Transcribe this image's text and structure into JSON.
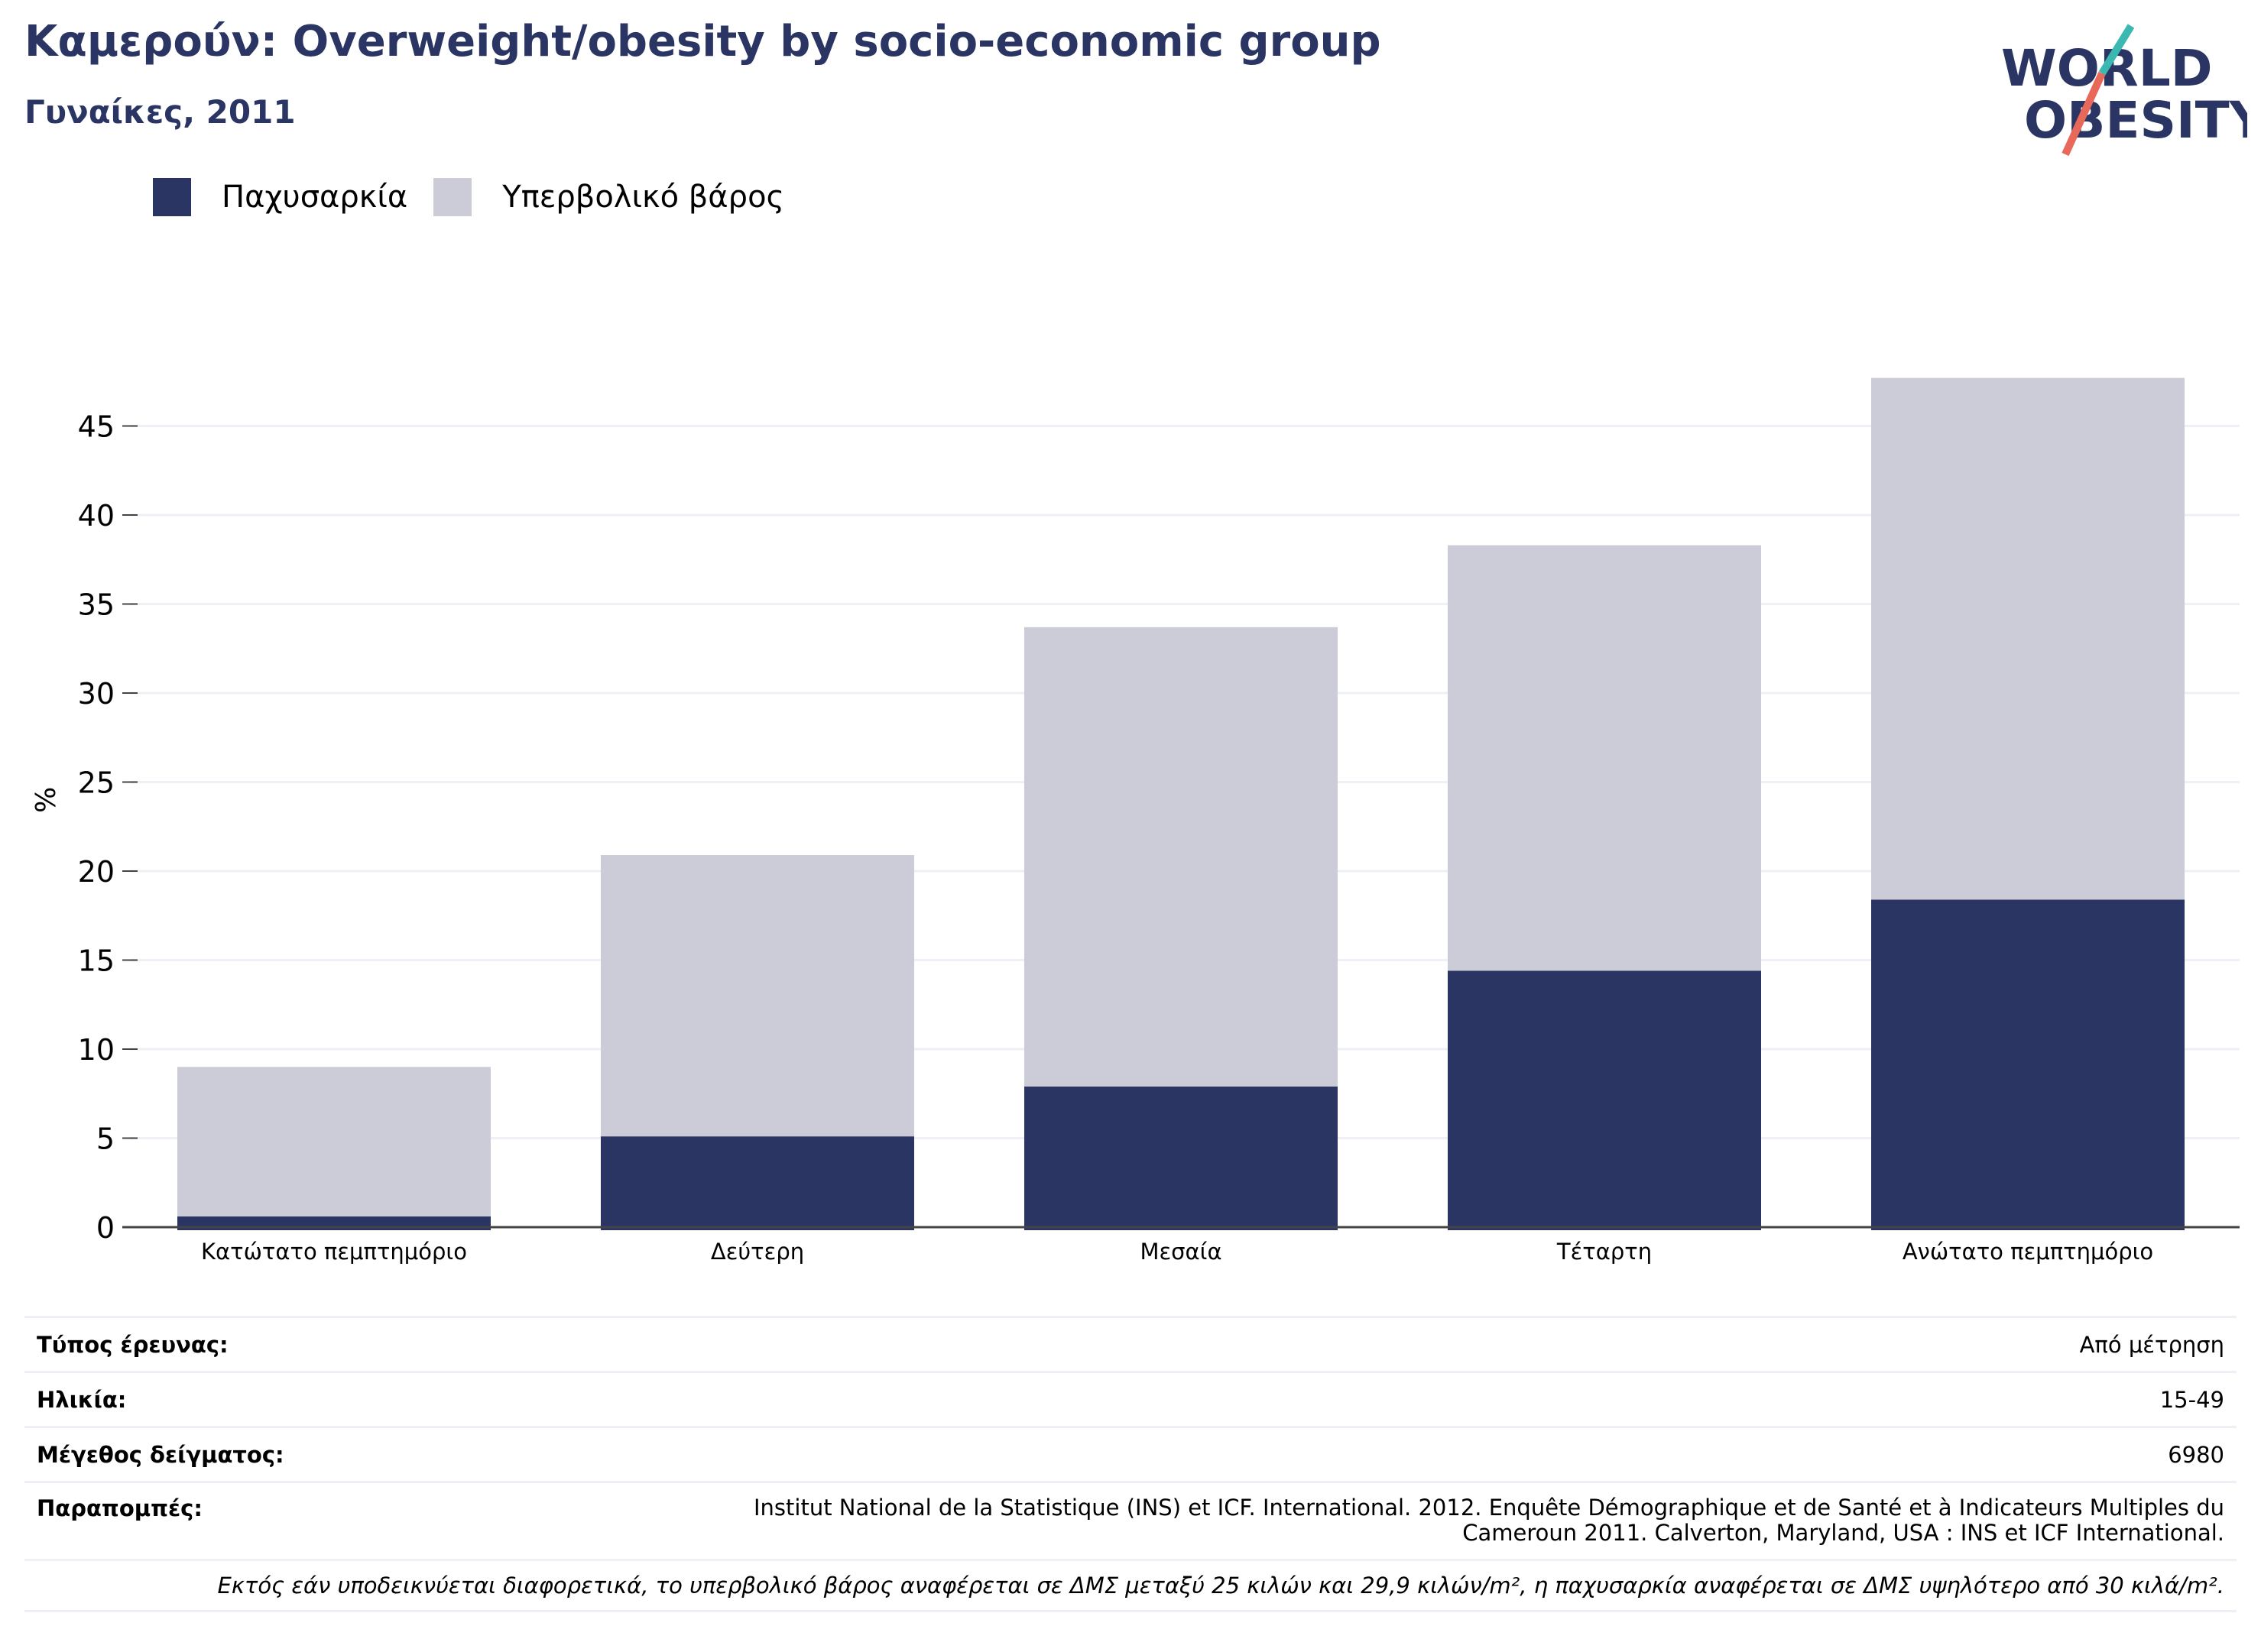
{
  "header": {
    "title": "Καμερούν: Overweight/obesity by socio-economic group",
    "subtitle": "Γυναίκες, 2011"
  },
  "logo": {
    "line1": "WORLD",
    "line2": "OBESITY",
    "colors": {
      "text": "#2a3564",
      "slash_top": "#3cb8b2",
      "slash_bottom": "#e8685a"
    }
  },
  "legend": [
    {
      "label": "Παχυσαρκία",
      "color": "#2a3564"
    },
    {
      "label": "Υπερβολικό βάρος",
      "color": "#cbccd7"
    }
  ],
  "chart_data": {
    "type": "bar",
    "stacked": true,
    "categories": [
      "Κατώτατο πεμπτημόριο",
      "Δεύτερη",
      "Μεσαία",
      "Τέταρτη",
      "Ανώτατο πεμπτημόριο"
    ],
    "series": [
      {
        "name": "Παχυσαρκία",
        "color": "#2a3564",
        "values": [
          0.6,
          5.1,
          7.9,
          14.4,
          18.4
        ]
      },
      {
        "name": "Υπερβολικό βάρος",
        "color": "#cbccd7",
        "values": [
          8.4,
          15.8,
          25.8,
          23.9,
          29.3
        ]
      }
    ],
    "ylabel": "%",
    "ylim": [
      0,
      48
    ],
    "yticks": [
      0,
      5,
      10,
      15,
      20,
      25,
      30,
      35,
      40,
      45
    ],
    "grid": true,
    "legend_position": "top-left"
  },
  "info": {
    "survey_type_label": "Τύπος έρευνας:",
    "survey_type_value": "Από μέτρηση",
    "age_label": "Ηλικία:",
    "age_value": "15-49",
    "sample_label": "Μέγεθος δείγματος:",
    "sample_value": "6980",
    "refs_label": "Παραπομπές:",
    "refs_value": "Institut National de la Statistique (INS) et ICF. International. 2012. Enquête Démographique et de Santé et à Indicateurs Multiples du Cameroun 2011. Calverton, Maryland, USA : INS et ICF International.",
    "note": "Εκτός εάν υποδεικνύεται διαφορετικά, το υπερβολικό βάρος αναφέρεται σε ΔΜΣ μεταξύ 25 κιλών και 29,9 κιλών/m², η παχυσαρκία αναφέρεται σε ΔΜΣ υψηλότερο από 30 κιλά/m²."
  }
}
